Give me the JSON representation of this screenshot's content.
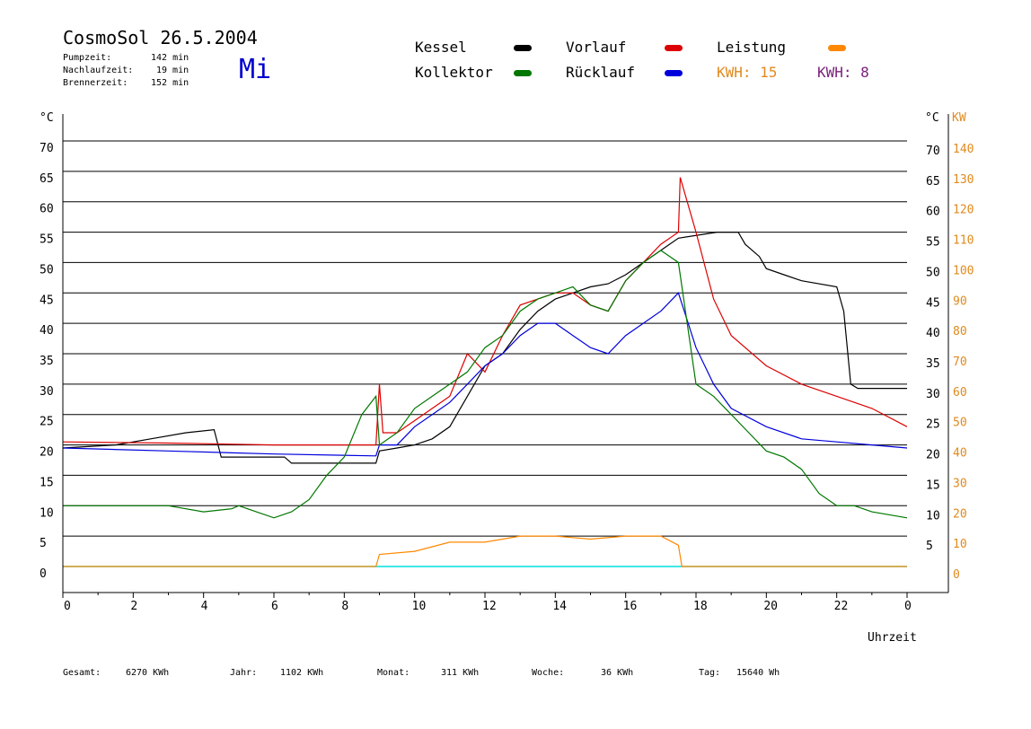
{
  "header": {
    "title": "CosmoSol 26.5.2004",
    "day": "Mi",
    "stats": [
      {
        "label": "Pumpzeit:",
        "value": "142 min"
      },
      {
        "label": "Nachlaufzeit:",
        "value": "19 min"
      },
      {
        "label": "Brennerzeit:",
        "value": "152 min"
      }
    ]
  },
  "legend": {
    "items": [
      {
        "label": "Kessel",
        "color": "#000000"
      },
      {
        "label": "Vorlauf",
        "color": "#dd0000"
      },
      {
        "label": "Leistung",
        "color": "#ff8800"
      },
      {
        "label": "Kollektor",
        "color": "#007700"
      },
      {
        "label": "Rücklauf",
        "color": "#0000dd"
      }
    ],
    "kwh": [
      {
        "label": "KWH: 15",
        "color": "#e08a1e"
      },
      {
        "label": "KWH: 8",
        "color": "#7a1e7a"
      }
    ]
  },
  "footer": [
    {
      "label": "Gesamt:",
      "value": "6270 KWh"
    },
    {
      "label": "Jahr:",
      "value": "1102 KWh"
    },
    {
      "label": "Monat:",
      "value": "311 KWh"
    },
    {
      "label": "Woche:",
      "value": "36 KWh"
    },
    {
      "label": "Tag:",
      "value": "15640 Wh"
    }
  ],
  "chart_data": {
    "type": "line",
    "xlabel": "Uhrzeit",
    "ylabel_left": "°C",
    "ylabel_right_temp": "°C",
    "ylabel_right_power": "KW",
    "xlim": [
      0,
      24
    ],
    "ylim": [
      0,
      70
    ],
    "ylim_power": [
      0,
      140
    ],
    "x_ticks": [
      "0",
      "2",
      "4",
      "6",
      "8",
      "10",
      "12",
      "14",
      "16",
      "18",
      "20",
      "22",
      "0"
    ],
    "y_ticks": [
      0,
      5,
      10,
      15,
      20,
      25,
      30,
      35,
      40,
      45,
      50,
      55,
      60,
      65,
      70
    ],
    "y_ticks_power": [
      0,
      10,
      20,
      30,
      40,
      50,
      60,
      70,
      80,
      90,
      100,
      110,
      120,
      130,
      140
    ],
    "grid": true,
    "series": [
      {
        "name": "Kessel",
        "color": "#000000",
        "x": [
          0,
          1.5,
          2.5,
          3.5,
          4.3,
          4.5,
          6.3,
          6.5,
          8.9,
          9.0,
          9.5,
          10,
          10.5,
          11,
          11.5,
          12,
          12.5,
          13,
          13.5,
          14,
          14.5,
          15,
          15.5,
          16,
          16.5,
          17,
          17.5,
          18.6,
          19.2,
          19.4,
          19.8,
          20,
          20.5,
          21,
          22,
          22.2,
          22.4,
          22.6,
          24
        ],
        "y": [
          19.5,
          20,
          21,
          22,
          22.5,
          18,
          18,
          17,
          17,
          19,
          19.5,
          20,
          21,
          23,
          28,
          33,
          35,
          39,
          42,
          44,
          45,
          46,
          46.5,
          48,
          50,
          52,
          54,
          55,
          55,
          53,
          51,
          49,
          48,
          47,
          46,
          42,
          30,
          29.3,
          29.3
        ]
      },
      {
        "name": "Vorlauf",
        "color": "#dd0000",
        "x": [
          0,
          3,
          6,
          8.9,
          9.0,
          9.1,
          9.5,
          10,
          10.5,
          11,
          11.5,
          12,
          12.5,
          13,
          13.5,
          14,
          14.5,
          15,
          15.5,
          16,
          16.5,
          17,
          17.5,
          17.55,
          18,
          18.5,
          19,
          20,
          21,
          22,
          23,
          24
        ],
        "y": [
          20.5,
          20.3,
          20,
          20,
          30,
          22,
          22,
          24,
          26,
          28,
          35,
          32,
          38,
          43,
          44,
          45,
          45,
          43,
          42,
          47,
          50,
          53,
          55,
          64,
          55,
          44,
          38,
          33,
          30,
          28,
          26,
          23
        ]
      },
      {
        "name": "Rücklauf",
        "color": "#0000dd",
        "x": [
          0,
          3,
          6,
          8.9,
          9.0,
          9.5,
          10,
          10.5,
          11,
          11.5,
          12,
          12.5,
          13,
          13.5,
          14,
          14.5,
          15,
          15.5,
          16,
          16.5,
          17,
          17.5,
          18,
          18.5,
          19,
          20,
          21,
          22,
          23,
          24
        ],
        "y": [
          19.5,
          19,
          18.5,
          18.2,
          20,
          20,
          23,
          25,
          27,
          30,
          33,
          35,
          38,
          40,
          40,
          38,
          36,
          35,
          38,
          40,
          42,
          45,
          36,
          30,
          26,
          23,
          21,
          20.5,
          20,
          19.5
        ]
      },
      {
        "name": "Kollektor",
        "color": "#007700",
        "x": [
          0,
          1,
          2,
          3,
          4,
          4.8,
          5,
          5.5,
          6,
          6.5,
          7,
          7.5,
          8,
          8.5,
          8.9,
          9.0,
          9.5,
          10,
          10.5,
          11,
          11.5,
          12,
          12.5,
          13,
          13.5,
          14,
          14.5,
          15,
          15.5,
          16,
          16.5,
          17,
          17.5,
          18,
          18.5,
          19,
          19.5,
          20,
          20.5,
          21,
          21.5,
          22,
          22.5,
          23,
          24
        ],
        "y": [
          10,
          10,
          10,
          10,
          9,
          9.5,
          10,
          9,
          8,
          9,
          11,
          15,
          18,
          25,
          28,
          20,
          22,
          26,
          28,
          30,
          32,
          36,
          38,
          42,
          44,
          45,
          46,
          43,
          42,
          47,
          50,
          52,
          50,
          30,
          28,
          25,
          22,
          19,
          18,
          16,
          12,
          10,
          10,
          9,
          8
        ]
      },
      {
        "name": "Leistung",
        "color": "#ff8800",
        "axis": "KW",
        "x": [
          0,
          8.9,
          9.0,
          10,
          11,
          12,
          13,
          14,
          15,
          16,
          17,
          17.5,
          17.6,
          24
        ],
        "y": [
          0,
          0,
          4,
          5,
          8,
          8,
          10,
          10,
          9,
          10,
          10,
          7,
          0,
          0
        ]
      }
    ]
  }
}
